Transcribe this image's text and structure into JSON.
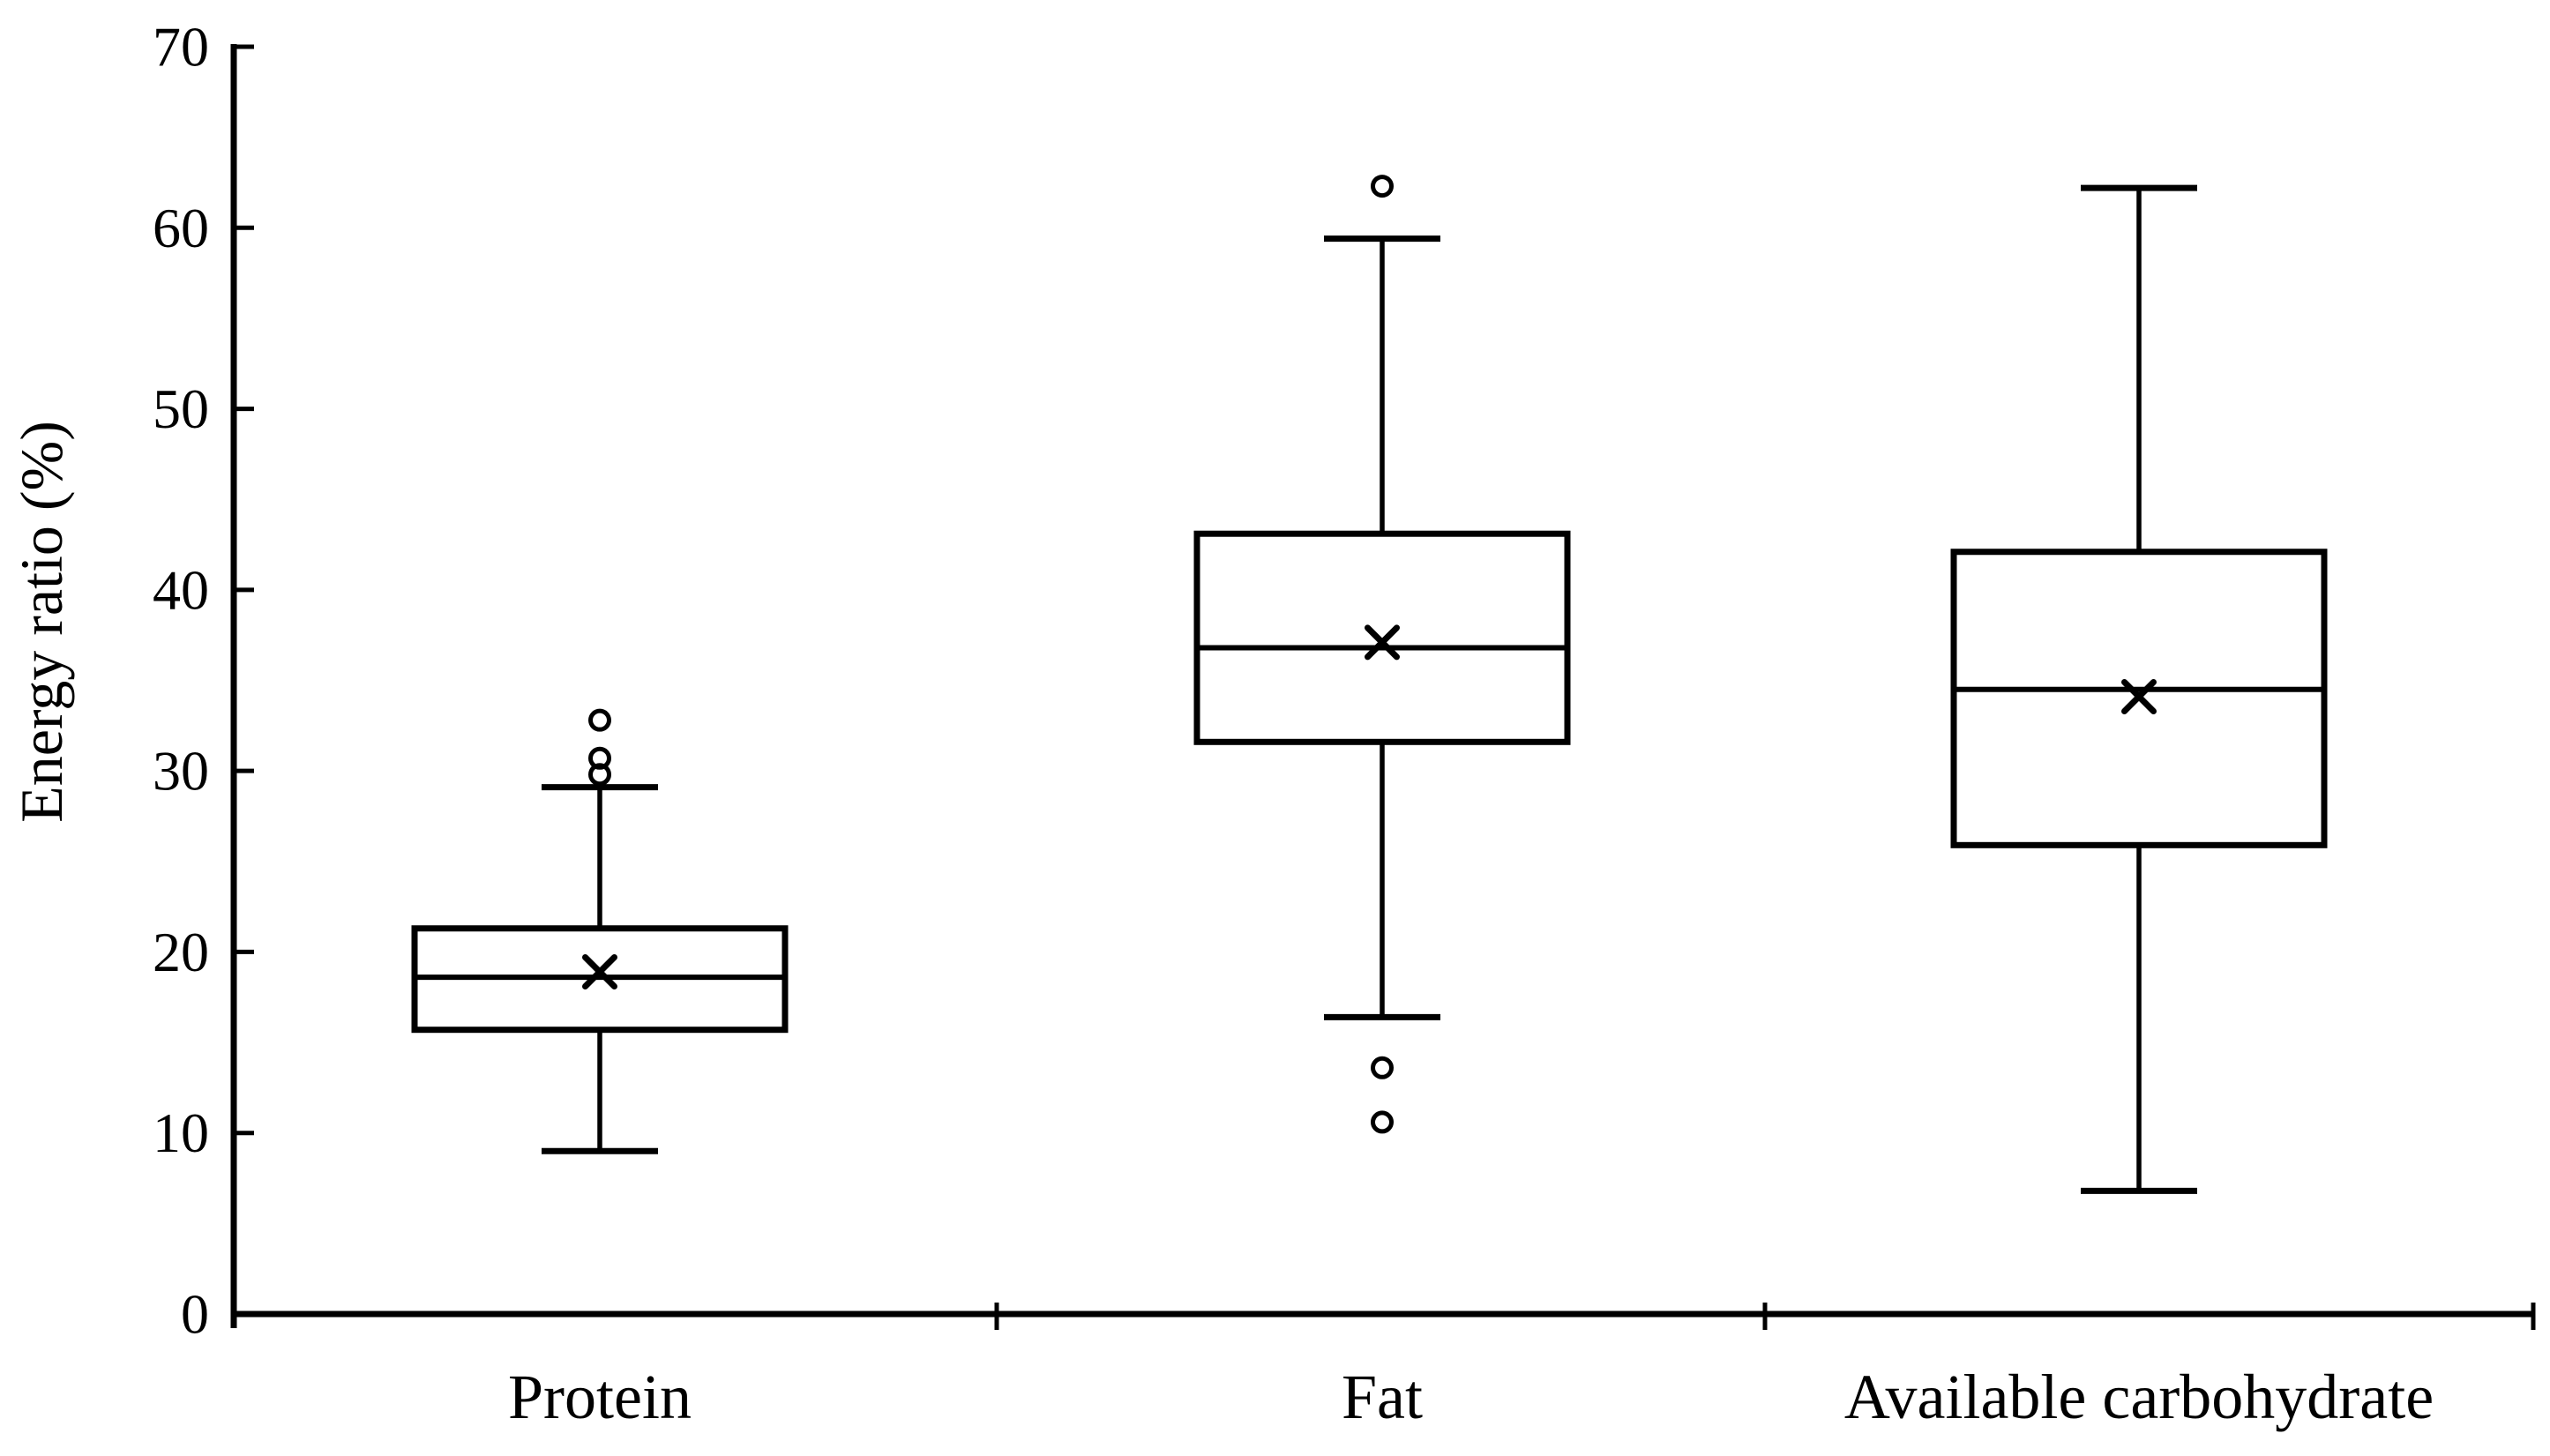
{
  "figure": {
    "background_color": "#ffffff",
    "ink_color": "#000000"
  },
  "chart_data": {
    "type": "boxplot",
    "title": "",
    "xlabel": "",
    "ylabel": "Energy ratio (%)",
    "ylim": [
      0,
      70
    ],
    "ytick_interval": 10,
    "yticks": [
      0,
      10,
      20,
      30,
      40,
      50,
      60,
      70
    ],
    "categories": [
      "Protein",
      "Fat",
      "Available carbohydrate"
    ],
    "grid": false,
    "legend": null,
    "mean_marker": "x",
    "outlier_marker": "open-circle",
    "series": [
      {
        "name": "Protein",
        "whisker_low": 9.0,
        "q1": 15.7,
        "median": 18.6,
        "q3": 21.3,
        "whisker_high": 29.1,
        "mean": 18.9,
        "outliers": [
          29.8,
          30.7,
          32.8
        ]
      },
      {
        "name": "Fat",
        "whisker_low": 16.4,
        "q1": 31.6,
        "median": 36.8,
        "q3": 43.1,
        "whisker_high": 59.4,
        "mean": 37.1,
        "outliers": [
          13.6,
          10.6,
          62.3
        ]
      },
      {
        "name": "Available carbohydrate",
        "whisker_low": 6.8,
        "q1": 25.9,
        "median": 34.5,
        "q3": 42.1,
        "whisker_high": 62.2,
        "mean": 34.1,
        "outliers": []
      }
    ]
  }
}
